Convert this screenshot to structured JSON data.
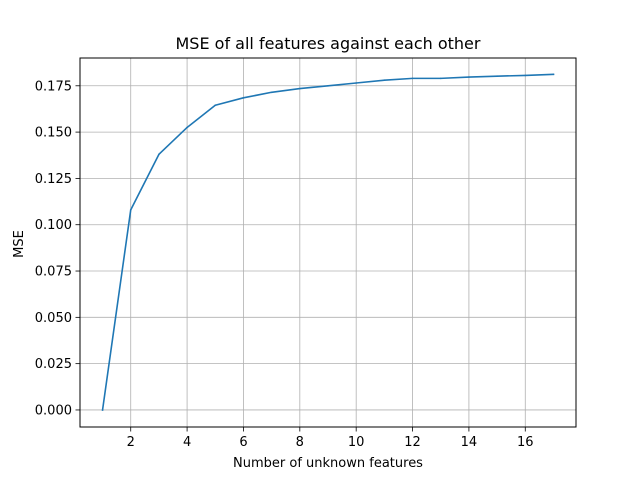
{
  "chart_data": {
    "type": "line",
    "title": "MSE of all features against each other",
    "xlabel": "Number of unknown features",
    "ylabel": "MSE",
    "xlim": [
      0.2,
      17.8
    ],
    "ylim": [
      -0.0092,
      0.19
    ],
    "grid": true,
    "x_ticks": [
      2,
      4,
      6,
      8,
      10,
      12,
      14,
      16
    ],
    "x_tick_labels": [
      "2",
      "4",
      "6",
      "8",
      "10",
      "12",
      "14",
      "16"
    ],
    "y_ticks": [
      0.0,
      0.025,
      0.05,
      0.075,
      0.1,
      0.125,
      0.15,
      0.175
    ],
    "y_tick_labels": [
      "0.000",
      "0.025",
      "0.050",
      "0.075",
      "0.100",
      "0.125",
      "0.150",
      "0.175"
    ],
    "series": [
      {
        "color": "#1f77b4",
        "x": [
          1,
          2,
          3,
          4,
          5,
          6,
          7,
          8,
          9,
          10,
          11,
          12,
          13,
          14,
          15,
          16,
          17
        ],
        "values": [
          0.0,
          0.108,
          0.138,
          0.1525,
          0.1645,
          0.1685,
          0.1715,
          0.1735,
          0.175,
          0.1765,
          0.178,
          0.179,
          0.179,
          0.1797,
          0.1802,
          0.1806,
          0.1812
        ]
      }
    ]
  }
}
